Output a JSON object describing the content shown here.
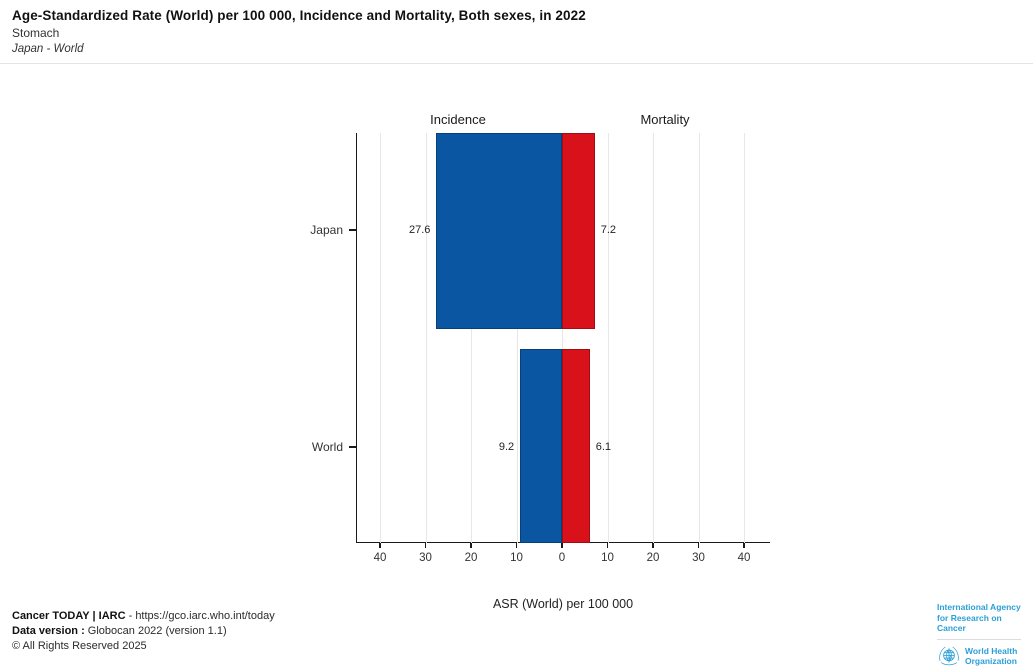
{
  "header": {
    "title": "Age-Standardized Rate (World) per 100 000, Incidence and Mortality, Both sexes, in 2022",
    "subtitle": "Stomach",
    "comparison": "Japan - World"
  },
  "chart_data": {
    "type": "bar",
    "subtype": "diverging-horizontal",
    "categories": [
      "Japan",
      "World"
    ],
    "series": [
      {
        "name": "Incidence",
        "side": "left",
        "color": "#0b56a2",
        "values": [
          27.6,
          9.2
        ]
      },
      {
        "name": "Mortality",
        "side": "right",
        "color": "#d8111b",
        "values": [
          7.2,
          6.1
        ]
      }
    ],
    "axis_ticks": [
      {
        "value": -40,
        "label": "40"
      },
      {
        "value": -30,
        "label": "30"
      },
      {
        "value": -20,
        "label": "20"
      },
      {
        "value": -10,
        "label": "10"
      },
      {
        "value": 0,
        "label": "0"
      },
      {
        "value": 10,
        "label": "10"
      },
      {
        "value": 20,
        "label": "20"
      },
      {
        "value": 30,
        "label": "30"
      },
      {
        "value": 40,
        "label": "40"
      }
    ],
    "xlim": [
      -45,
      46
    ],
    "grid": true,
    "legend_position": "column-headers",
    "xlabel": "ASR (World) per 100 000",
    "title": "Age-Standardized Rate (World) per 100 000, Incidence and Mortality, Both sexes, in 2022"
  },
  "footer": {
    "line1_bold": "Cancer TODAY | IARC",
    "line1_rest": " - ",
    "line1_link": "https://gco.iarc.who.int/today",
    "line2_bold": "Data version :",
    "line2_rest": " Globocan 2022 (version 1.1)",
    "line3": "© All Rights Reserved 2025"
  },
  "logos": {
    "iarc_line1": "International Agency",
    "iarc_line2": "for Research on Cancer",
    "who_line1": "World Health",
    "who_line2": "Organization",
    "brand_blue": "#2b9fd6"
  }
}
